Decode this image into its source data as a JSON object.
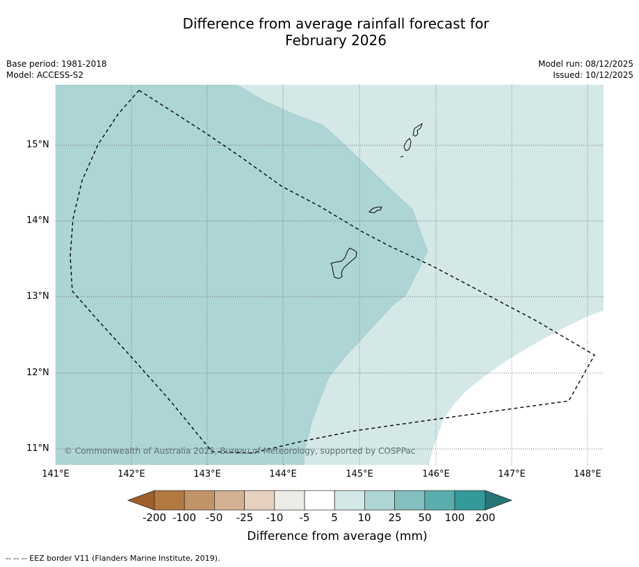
{
  "title_line1": "Difference from average rainfall forecast for",
  "title_line2": "February 2026",
  "meta": {
    "base_period": "Base period: 1981-2018",
    "model": "Model: ACCESS-S2",
    "model_run": "Model run: 08/12/2025",
    "issued": "Issued: 10/12/2025"
  },
  "map": {
    "lat_labels": [
      "15°N",
      "14°N",
      "13°N",
      "12°N",
      "11°N"
    ],
    "lon_labels": [
      "141°E",
      "142°E",
      "143°E",
      "144°E",
      "145°E",
      "146°E",
      "147°E",
      "148°E"
    ],
    "copyright": "© Commonwealth of Australia 2025, Bureau of Meteorology, supported by COSPPac",
    "colors": {
      "band_10_25": "#aed5d5",
      "band_5_10": "#d4e8e8",
      "band_neutral": "#ffffff"
    }
  },
  "colorbar": {
    "ticks": [
      "-200",
      "-100",
      "-50",
      "-25",
      "-10",
      "-5",
      "5",
      "10",
      "25",
      "50",
      "100",
      "200"
    ],
    "colors": [
      "#a05f2a",
      "#b27a40",
      "#c19468",
      "#d3b091",
      "#e6d0be",
      "#edebe7",
      "#ffffff",
      "#d4e8e8",
      "#aed5d5",
      "#84bfbf",
      "#5aadad",
      "#33999a",
      "#267676"
    ],
    "label": "Difference from average (mm)"
  },
  "footnote": "--  --  -- EEZ border V11 (Flanders Marine Institute, 2019)."
}
